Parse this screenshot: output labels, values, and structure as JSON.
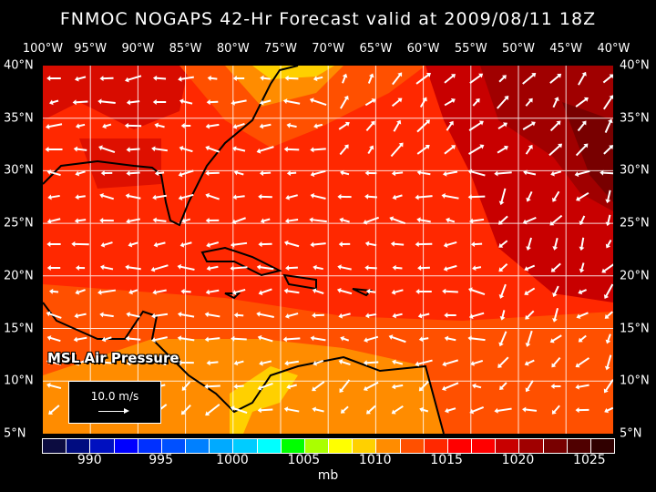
{
  "title": "FNMOC NOGAPS 42-Hr Forecast valid at 2009/08/11 18Z",
  "longitude_labels": [
    "100°W",
    "95°W",
    "90°W",
    "85°W",
    "80°W",
    "75°W",
    "70°W",
    "65°W",
    "60°W",
    "55°W",
    "50°W",
    "45°W",
    "40°W"
  ],
  "latitude_labels": [
    "40°N",
    "35°N",
    "30°N",
    "25°N",
    "20°N",
    "15°N",
    "10°N",
    "5°N"
  ],
  "legend": {
    "field": "MSL Air Pressure",
    "reference_vector": "10.0 m/s"
  },
  "colorbar": {
    "colors": [
      "#0c0c40",
      "#000c80",
      "#0010c0",
      "#0000ff",
      "#0030ff",
      "#0050ff",
      "#0080ff",
      "#00aaff",
      "#00ccff",
      "#00ffff",
      "#00ff00",
      "#aaff00",
      "#ffff00",
      "#ffd000",
      "#ff8c00",
      "#ff5000",
      "#ff2800",
      "#ff0000",
      "#ff0000",
      "#c80000",
      "#a00000",
      "#780000",
      "#500000",
      "#300000"
    ],
    "labels": [
      "990",
      "995",
      "1000",
      "1005",
      "1010",
      "1015",
      "1020",
      "1025"
    ],
    "unit": "mb"
  }
}
